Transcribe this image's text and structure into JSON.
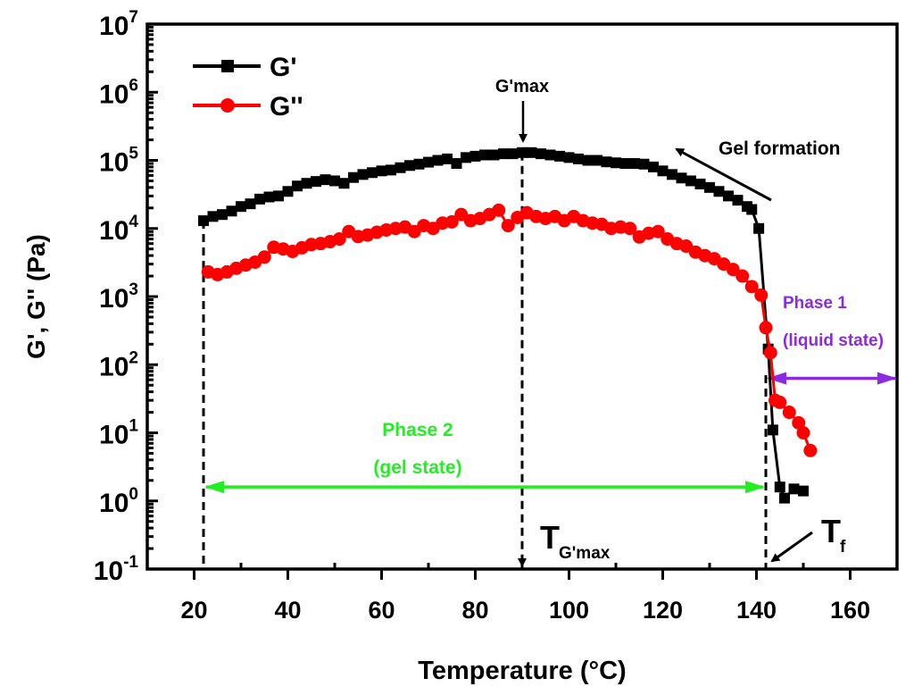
{
  "chart_data": {
    "type": "line",
    "title": "",
    "xlabel": "Temperature  (°C)",
    "xlabel_main": "Temperature  (",
    "xlabel_unit_sup": "o",
    "xlabel_unit": "C)",
    "ylabel": "G', G''  (Pa)",
    "xlim": [
      10,
      170
    ],
    "ylim": [
      0.1,
      10000000
    ],
    "yscale": "log",
    "x_ticks": [
      20,
      40,
      60,
      80,
      100,
      120,
      140,
      160
    ],
    "x_tick_labels": [
      "20",
      "40",
      "60",
      "80",
      "100",
      "120",
      "140",
      "160"
    ],
    "y_tick_exponents": [
      -1,
      0,
      1,
      2,
      3,
      4,
      5,
      6,
      7
    ],
    "y_tick_labels": [
      "10",
      "10",
      "10",
      "10",
      "10",
      "10",
      "10",
      "10",
      "10"
    ],
    "y_tick_sups": [
      "-1",
      "0",
      "1",
      "2",
      "3",
      "4",
      "5",
      "6",
      "7"
    ],
    "legend": {
      "position": "top-left",
      "entries": [
        "G'",
        "G''"
      ]
    },
    "series": [
      {
        "name": "G'",
        "color": "#000000",
        "marker": "square",
        "x": [
          22,
          24,
          26,
          28,
          30,
          32,
          34,
          36,
          38,
          40,
          42,
          44,
          46,
          48,
          50,
          52,
          54,
          56,
          58,
          60,
          62,
          64,
          66,
          68,
          70,
          72,
          74,
          76,
          78,
          80,
          82,
          84,
          86,
          88,
          90,
          92,
          94,
          96,
          98,
          100,
          102,
          104,
          106,
          108,
          110,
          112,
          114,
          116,
          118,
          120,
          122,
          124,
          126,
          128,
          130,
          132,
          134,
          136,
          138,
          139,
          140.5,
          142.5,
          143.5,
          145,
          146,
          148,
          150
        ],
        "y": [
          13000.0,
          15000.0,
          16000.0,
          18000.0,
          21000.0,
          23000.0,
          27000.0,
          29000.0,
          30000.0,
          35000.0,
          42000.0,
          46000.0,
          49000.0,
          52000.0,
          50000.0,
          46000.0,
          56000.0,
          62000.0,
          66000.0,
          70000.0,
          72000.0,
          78000.0,
          84000.0,
          88000.0,
          94000.0,
          100000.0,
          105000.0,
          90000.0,
          110000.0,
          115000.0,
          120000.0,
          120000.0,
          125000.0,
          125000.0,
          130000.0,
          130000.0,
          125000.0,
          120000.0,
          115000.0,
          110000.0,
          105000.0,
          100000.0,
          100000.0,
          95000.0,
          92000.0,
          90000.0,
          90000.0,
          88000.0,
          80000.0,
          70000.0,
          62000.0,
          55000.0,
          50000.0,
          45000.0,
          40000.0,
          35000.0,
          30000.0,
          26000.0,
          21000.0,
          19000.0,
          10000.0,
          170,
          11,
          1.6,
          1.1,
          1.5,
          1.4
        ]
      },
      {
        "name": "G''",
        "color": "#ff0000",
        "marker": "circle",
        "x": [
          23,
          25,
          27,
          29,
          31,
          33,
          35,
          37,
          39,
          41,
          43,
          45,
          47,
          49,
          51,
          53,
          55,
          57,
          59,
          61,
          63,
          65,
          67,
          69,
          71,
          73,
          75,
          77,
          79,
          81,
          83,
          85,
          87,
          89,
          91,
          93,
          95,
          97,
          99,
          101,
          103,
          105,
          107,
          109,
          111,
          113,
          115,
          117,
          119,
          121,
          123,
          125,
          127,
          129,
          131,
          133,
          135,
          137,
          139,
          141,
          142,
          143,
          144,
          145,
          147,
          149,
          150,
          151.5
        ],
        "y": [
          2300.0,
          2100.0,
          2300.0,
          2600.0,
          2900.0,
          3200.0,
          3800.0,
          5300.0,
          5000.0,
          4600.0,
          5200.0,
          5800.0,
          6000.0,
          6400.0,
          7000.0,
          9000.0,
          7600.0,
          8000.0,
          8800.0,
          9500.0,
          10000.0,
          10500.0,
          9000.0,
          11000.0,
          10000.0,
          12000.0,
          12500.0,
          16000.0,
          13000.0,
          14000.0,
          16000.0,
          18500.0,
          11000.0,
          14500.0,
          17000.0,
          15000.0,
          14000.0,
          15000.0,
          13000.0,
          15000.0,
          13000.0,
          12000.0,
          11500.0,
          10000.0,
          10500.0,
          10000.0,
          7500.0,
          8500.0,
          9000.0,
          7000.0,
          6000.0,
          5500.0,
          4500.0,
          4000.0,
          3600.0,
          3000.0,
          2500.0,
          2000.0,
          1400.0,
          1050.0,
          350,
          150,
          30,
          28,
          20,
          14,
          10,
          5.5
        ]
      }
    ],
    "annotations": {
      "gmax_label": "G'max",
      "gmax_T": 90,
      "t_gmax_main": "T",
      "t_gmax_sub": "G'max",
      "tf_main": "T",
      "tf_sub": "f",
      "tf_T": 142,
      "gel_start_T": 22,
      "gel_formation": "Gel formation",
      "phase1_line1": "Phase 1",
      "phase1_line2": "(liquid state)",
      "phase1_color": "#8a2be2",
      "phase1_arrow_y": 63,
      "phase2_line1": "Phase 2",
      "phase2_line2": "(gel state)",
      "phase2_color": "#22ee22",
      "phase2_arrow_y": 1.6
    }
  }
}
